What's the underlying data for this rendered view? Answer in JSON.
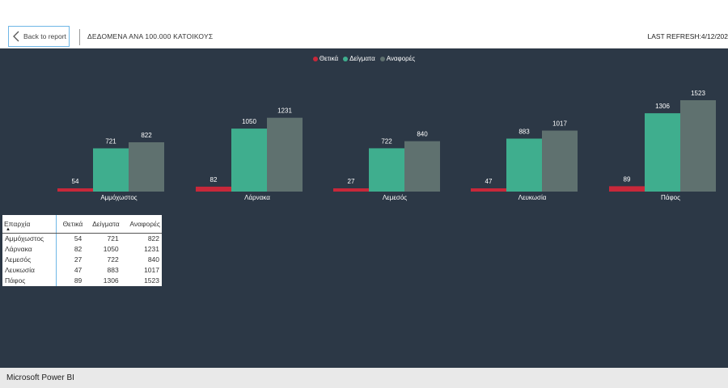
{
  "header": {
    "back_label": "Back to report",
    "title": "ΔΕΔΟΜΕΝΑ ΑΝΑ 100.000 ΚΑΤΟΙΚΟΥΣ",
    "last_refresh": "LAST REFRESH:4/12/202"
  },
  "footer": {
    "brand": "Microsoft Power BI"
  },
  "colors": {
    "positive": "#c8283a",
    "samples": "#3fae8e",
    "reports": "#5f716f",
    "background": "#2c3846"
  },
  "table": {
    "headers": [
      "Επαρχία",
      "Θετικά",
      "Δείγματα",
      "Αναφορές"
    ],
    "rows": [
      [
        "Αμμόχωστος",
        "54",
        "721",
        "822"
      ],
      [
        "Λάρνακα",
        "82",
        "1050",
        "1231"
      ],
      [
        "Λεμεσός",
        "27",
        "722",
        "840"
      ],
      [
        "Λευκωσία",
        "47",
        "883",
        "1017"
      ],
      [
        "Πάφος",
        "89",
        "1306",
        "1523"
      ]
    ]
  },
  "chart_data": {
    "type": "bar",
    "categories": [
      "Αμμόχωστος",
      "Λάρνακα",
      "Λεμεσός",
      "Λευκωσία",
      "Πάφος"
    ],
    "series": [
      {
        "name": "Θετικά",
        "values": [
          54,
          82,
          27,
          47,
          89
        ],
        "color": "#c8283a"
      },
      {
        "name": "Δείγματα",
        "values": [
          721,
          1050,
          722,
          883,
          1306
        ],
        "color": "#3fae8e"
      },
      {
        "name": "Αναφορές",
        "values": [
          822,
          1231,
          840,
          1017,
          1523
        ],
        "color": "#5f716f"
      }
    ],
    "ylim": [
      0,
      1523
    ],
    "legend": "top-center",
    "grid": false
  }
}
